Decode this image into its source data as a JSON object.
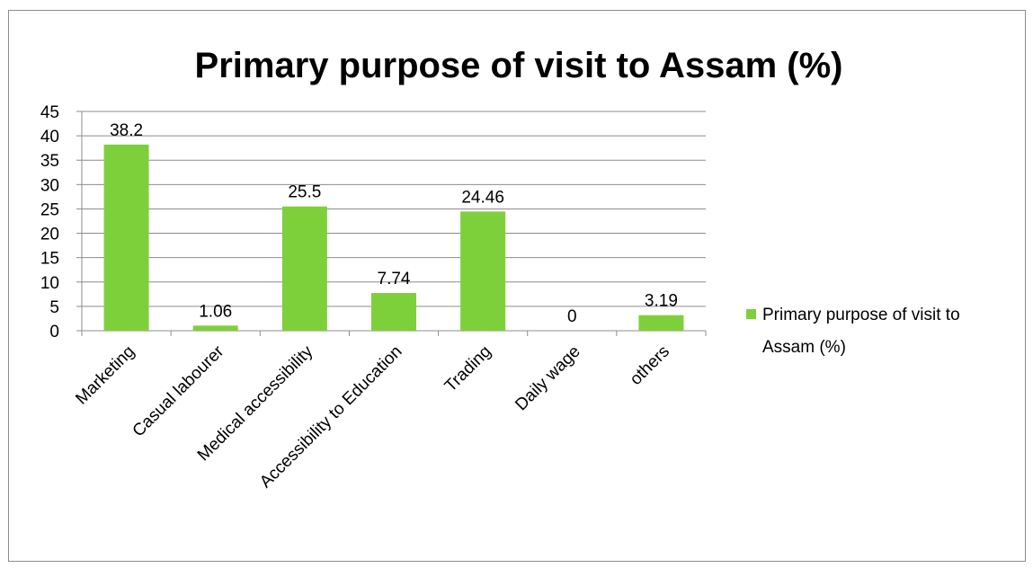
{
  "chart_data": {
    "type": "bar",
    "title": "Primary purpose of visit to Assam (%)",
    "categories": [
      "Marketing",
      "Casual labourer",
      "Medical accessibility",
      "Accessibility to Education",
      "Trading",
      "Daily wage",
      "others"
    ],
    "series": [
      {
        "name": "Primary purpose of visit to Assam (%)",
        "values": [
          38.2,
          1.06,
          25.5,
          7.74,
          24.46,
          0,
          3.19
        ],
        "data_labels": [
          "38.2",
          "1.06",
          "25.5",
          "7.74",
          "24.46",
          "0",
          "3.19"
        ],
        "color": "#7ed03b"
      }
    ],
    "ylim": [
      0,
      45
    ],
    "y_ticks": [
      0,
      5,
      10,
      15,
      20,
      25,
      30,
      35,
      40,
      45
    ],
    "y_tick_labels": [
      "0",
      "5",
      "10",
      "15",
      "20",
      "25",
      "30",
      "35",
      "40",
      "45"
    ],
    "xlabel": "",
    "ylabel": "",
    "grid": true,
    "legend_position": "right",
    "legend_lines": [
      "Primary purpose of visit to",
      "Assam (%)"
    ]
  }
}
